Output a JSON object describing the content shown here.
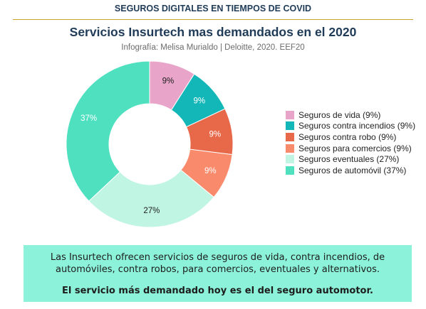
{
  "header": {
    "text": "SEGUROS DIGITALES EN TIEMPOS DE COVID"
  },
  "chart_data": {
    "type": "pie",
    "title": "Servicios Insurtech mas demandados en el 2020",
    "subtitle": "Infografía: Melisa Murialdo | Deloitte, 2020. EEF20",
    "slices": [
      {
        "label": "Seguros de vida",
        "value": 9,
        "display": "9%",
        "legend": "Seguros de vida (9%)",
        "color": "#e8a5c9",
        "label_color": "#1d1d1d"
      },
      {
        "label": "Seguros contra incendios",
        "value": 9,
        "display": "9%",
        "legend": "Seguros contra incendios (9%)",
        "color": "#13b7b8",
        "label_color": "#ffffff"
      },
      {
        "label": "Seguros contra robo",
        "value": 9,
        "display": "9%",
        "legend": "Seguros contra robo (9%)",
        "color": "#e8684a",
        "label_color": "#ffffff"
      },
      {
        "label": "Seguros para comercios",
        "value": 9,
        "display": "9%",
        "legend": "Seguros para comercios (9%)",
        "color": "#fa8a6c",
        "label_color": "#ffffff"
      },
      {
        "label": "Seguros eventuales",
        "value": 27,
        "display": "27%",
        "legend": "Seguros eventuales (27%)",
        "color": "#c0f4e3",
        "label_color": "#1d1d1d"
      },
      {
        "label": "Seguros de automóvil",
        "value": 37,
        "display": "37%",
        "legend": "Seguros de automóvil (37%)",
        "color": "#4fe0c0",
        "label_color": "#ffffff"
      }
    ],
    "donut": true,
    "legend_position": "right"
  },
  "note": {
    "body": "Las Insurtech ofrecen servicios de seguros de vida, contra incendios, de automóviles, contra robos, para comercios, eventuales y alternativos.",
    "highlight": "El servicio más demandado hoy es el del seguro automotor."
  }
}
